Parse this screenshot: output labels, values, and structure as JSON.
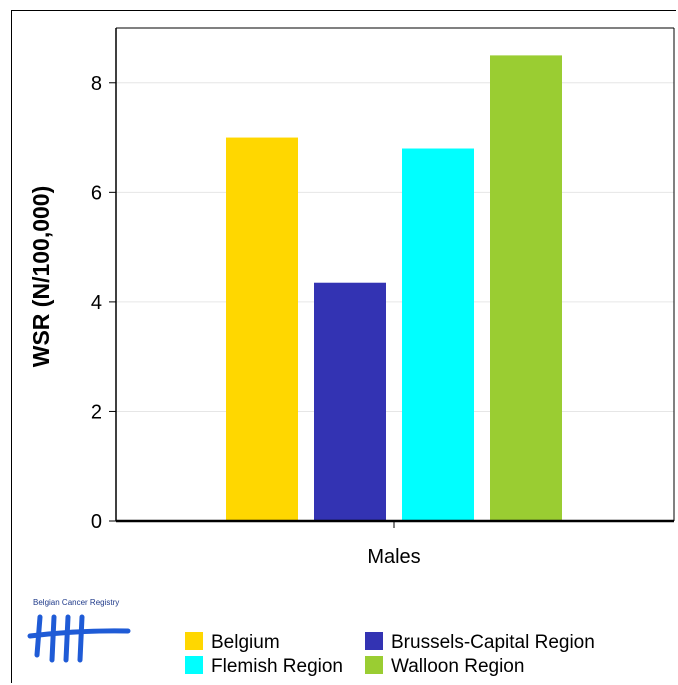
{
  "chart_data": {
    "type": "bar",
    "title": "",
    "xlabel": "",
    "ylabel": "WSR (N/100,000)",
    "categories": [
      "Males"
    ],
    "ylim": [
      0,
      9
    ],
    "yticks": [
      0,
      2,
      4,
      6,
      8
    ],
    "grid": true,
    "legend_position": "bottom",
    "series": [
      {
        "name": "Belgium",
        "values": [
          7.0
        ],
        "color": "#FFD700"
      },
      {
        "name": "Brussels-Capital Region",
        "values": [
          4.35
        ],
        "color": "#3333B3"
      },
      {
        "name": "Flemish Region",
        "values": [
          6.8
        ],
        "color": "#00FFFF"
      },
      {
        "name": "Walloon Region",
        "values": [
          8.5
        ],
        "color": "#9ACD32"
      }
    ]
  },
  "logo": {
    "text": "Belgian Cancer Registry",
    "icon": "tally-marks-icon",
    "color": "#1f5bd6"
  }
}
